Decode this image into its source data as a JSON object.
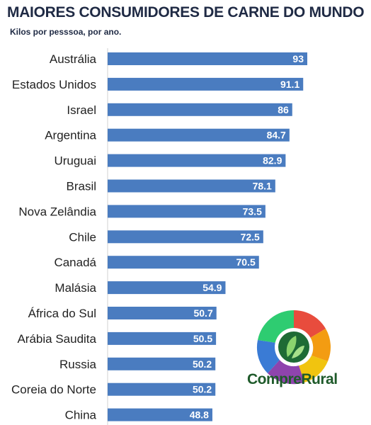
{
  "chart_data": {
    "type": "bar",
    "orientation": "horizontal",
    "title": "MAIORES CONSUMIDORES DE CARNE DO MUNDO",
    "subtitle": "Kilos por pesssoa, por ano.",
    "categories": [
      "Austrália",
      "Estados Unidos",
      "Israel",
      "Argentina",
      "Uruguai",
      "Brasil",
      "Nova Zelândia",
      "Chile",
      "Canadá",
      "Malásia",
      "África do Sul",
      "Arábia Saudita",
      "Russia",
      "Coreia do Norte",
      "China"
    ],
    "values": [
      93,
      91.1,
      86,
      84.7,
      82.9,
      78.1,
      73.5,
      72.5,
      70.5,
      54.9,
      50.7,
      50.5,
      50.2,
      50.2,
      48.8
    ],
    "value_labels": [
      "93",
      "91.1",
      "86",
      "84.7",
      "82.9",
      "78.1",
      "73.5",
      "72.5",
      "70.5",
      "54.9",
      "50.7",
      "50.5",
      "50.2",
      "50.2",
      "48.8"
    ],
    "xlim": [
      0,
      93
    ],
    "grid": false,
    "bar_color": "#4a7cc0"
  },
  "logo": {
    "text": "CompreRural",
    "icon": "compre-rural-logo-icon"
  }
}
